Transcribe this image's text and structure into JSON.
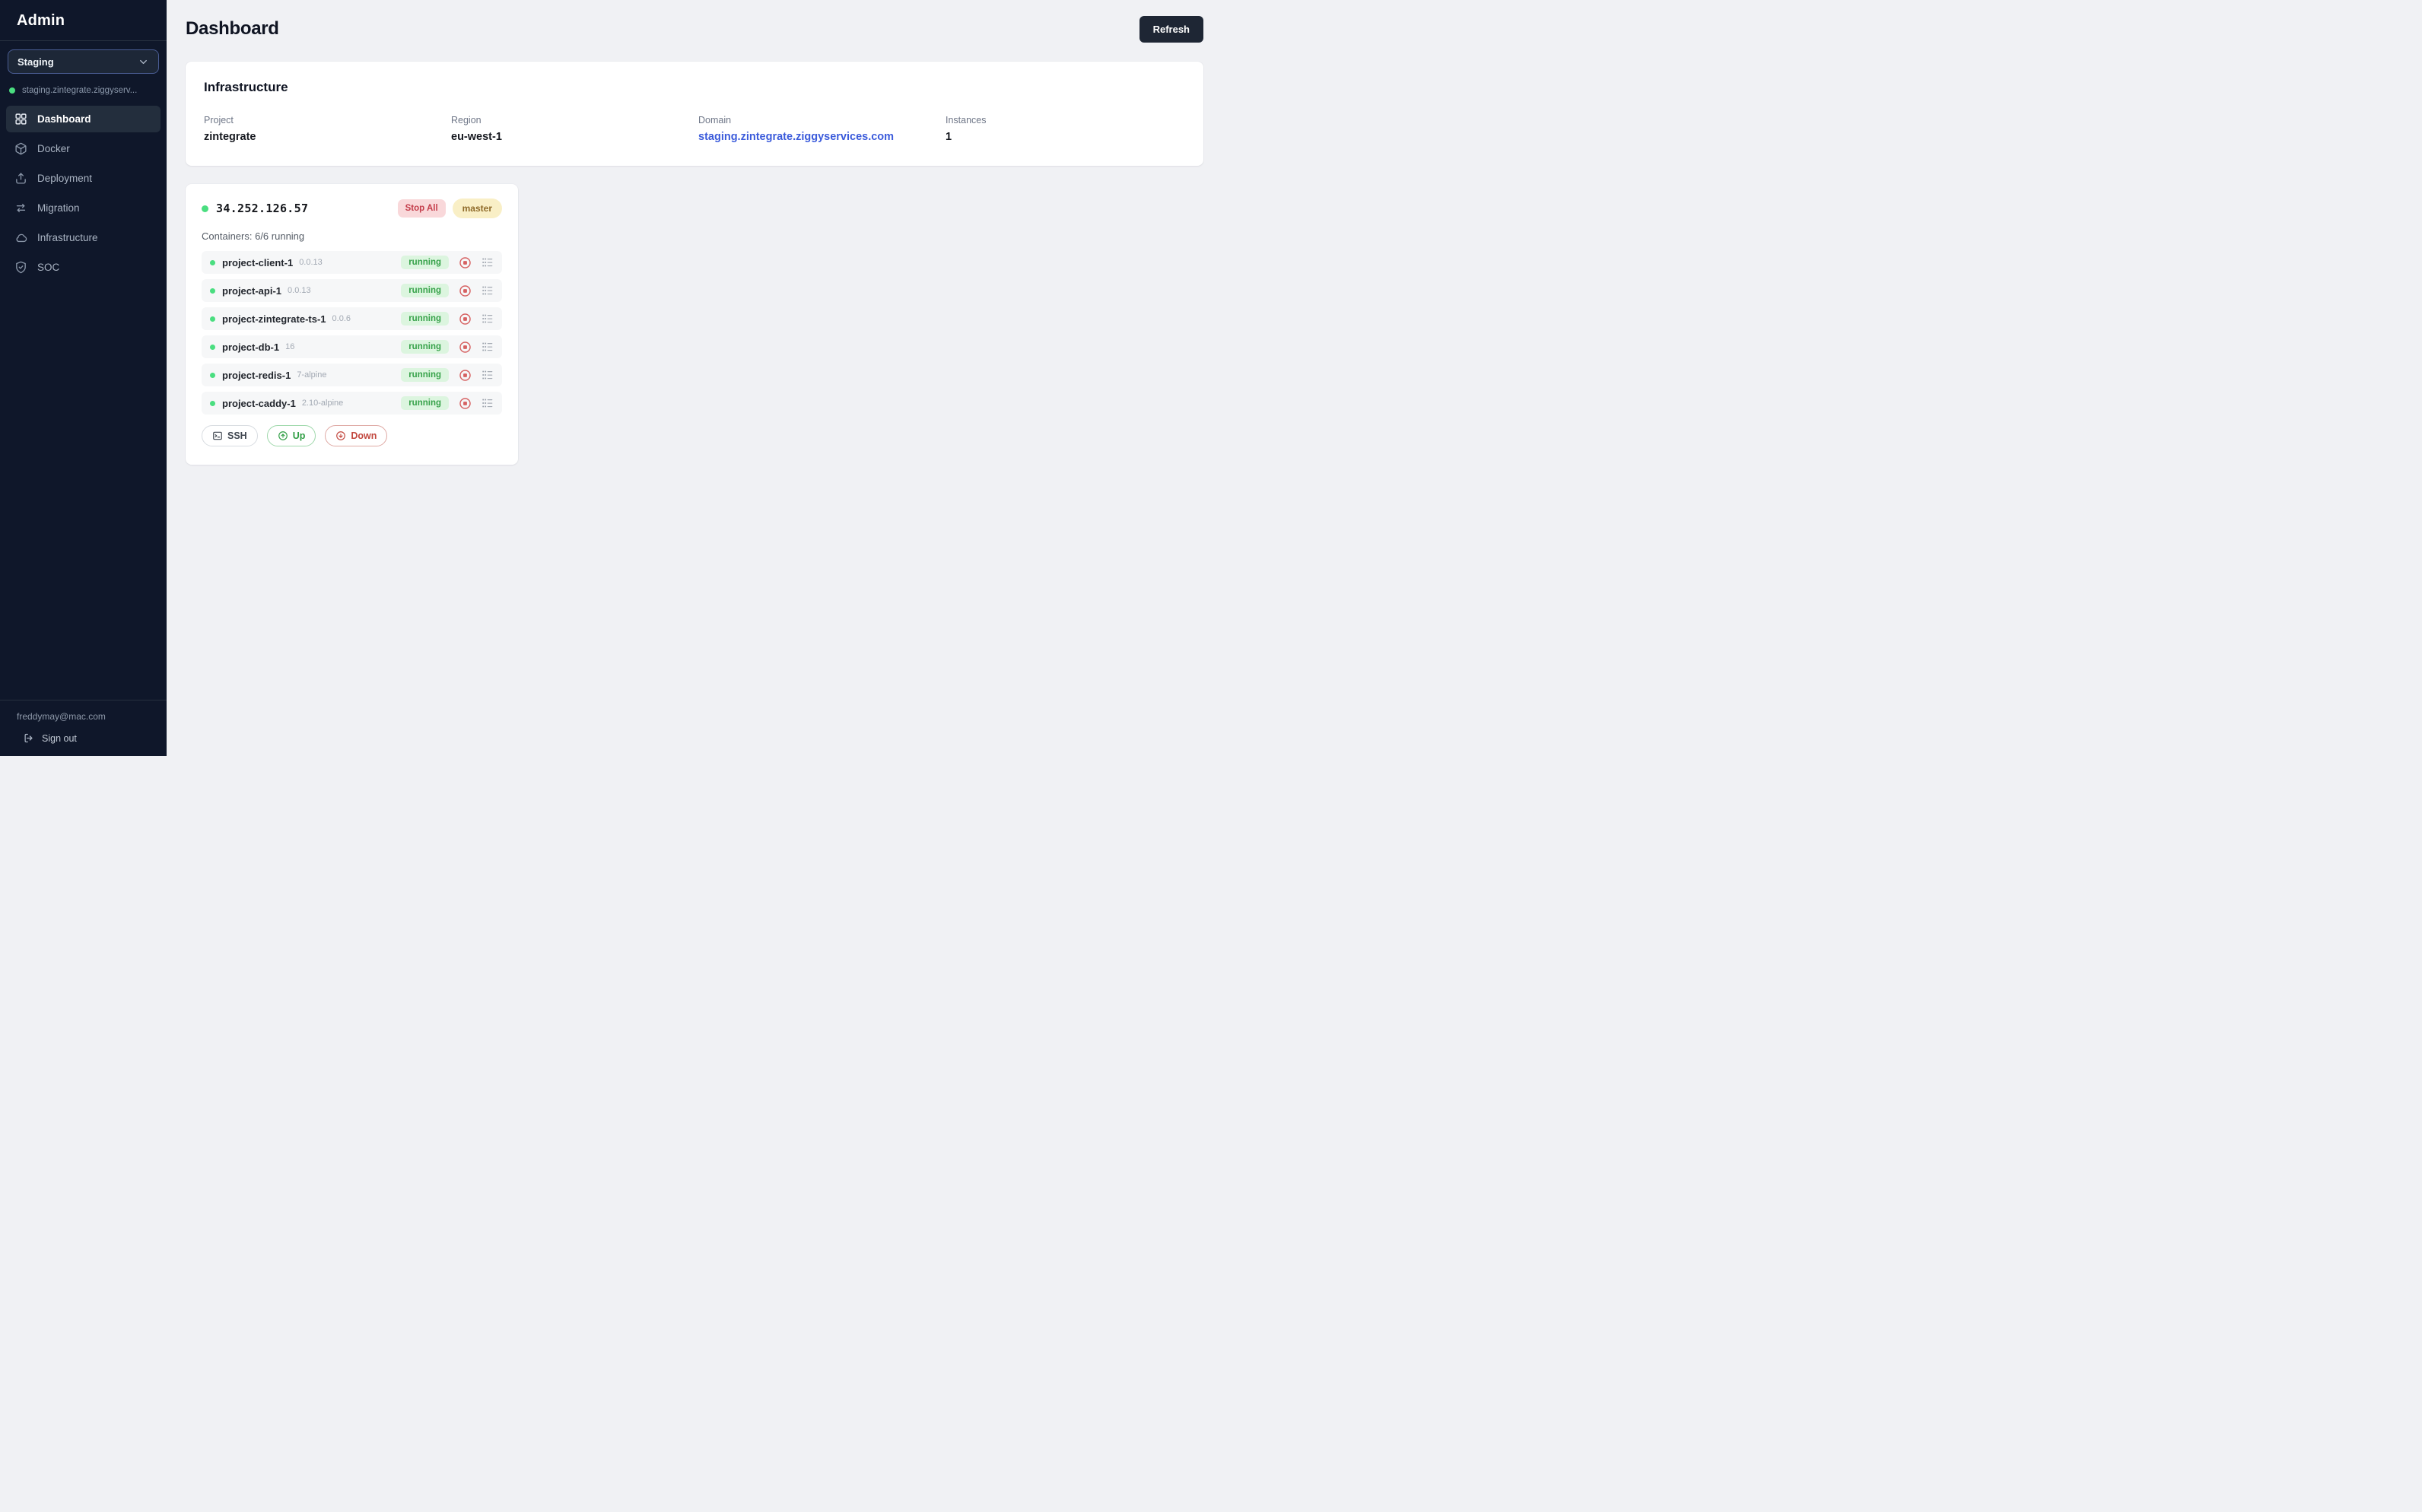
{
  "sidebar": {
    "title": "Admin",
    "environment_select": {
      "value": "Staging"
    },
    "workspace": {
      "label": "staging.zintegrate.ziggyserv...",
      "status_color": "#4ade80"
    },
    "nav": [
      {
        "label": "Dashboard",
        "icon": "grid-icon",
        "active": true
      },
      {
        "label": "Docker",
        "icon": "cube-icon",
        "active": false
      },
      {
        "label": "Deployment",
        "icon": "upload-icon",
        "active": false
      },
      {
        "label": "Migration",
        "icon": "arrows-swap-icon",
        "active": false
      },
      {
        "label": "Infrastructure",
        "icon": "cloud-icon",
        "active": false
      },
      {
        "label": "SOC",
        "icon": "shield-check-icon",
        "active": false
      }
    ],
    "footer": {
      "email": "freddymay@mac.com",
      "sign_out_label": "Sign out"
    }
  },
  "header": {
    "title": "Dashboard",
    "refresh_label": "Refresh"
  },
  "infrastructure": {
    "title": "Infrastructure",
    "fields": [
      {
        "label": "Project",
        "value": "zintegrate",
        "type": "text"
      },
      {
        "label": "Region",
        "value": "eu-west-1",
        "type": "text"
      },
      {
        "label": "Domain",
        "value": "staging.zintegrate.ziggyservices.com",
        "type": "link"
      },
      {
        "label": "Instances",
        "value": "1",
        "type": "text"
      }
    ]
  },
  "server": {
    "ip": "34.252.126.57",
    "status_color": "#4ade80",
    "stop_all_label": "Stop All",
    "branch_label": "master",
    "containers_summary": "Containers: 6/6 running",
    "containers": [
      {
        "name": "project-client-1",
        "version": "0.0.13",
        "status": "running"
      },
      {
        "name": "project-api-1",
        "version": "0.0.13",
        "status": "running"
      },
      {
        "name": "project-zintegrate-ts-1",
        "version": "0.0.6",
        "status": "running"
      },
      {
        "name": "project-db-1",
        "version": "16",
        "status": "running"
      },
      {
        "name": "project-redis-1",
        "version": "7-alpine",
        "status": "running"
      },
      {
        "name": "project-caddy-1",
        "version": "2.10-alpine",
        "status": "running"
      }
    ],
    "actions": {
      "ssh": "SSH",
      "up": "Up",
      "down": "Down"
    }
  },
  "colors": {
    "sidebar_bg": "#0f172a",
    "active_nav_bg": "#232e3d",
    "select_border": "#4a5d94",
    "main_bg": "#f0f1f4",
    "link_blue": "#3b5bdb",
    "status_green_dot": "#4ade80",
    "running_badge_bg": "#dcf5df",
    "running_badge_text": "#37a24a",
    "stop_all_bg": "#f9d8da",
    "stop_all_text": "#c43d4b",
    "branch_badge_bg": "#f9efc6",
    "branch_badge_text": "#8f6b2a",
    "refresh_btn_bg": "#1e2634"
  }
}
